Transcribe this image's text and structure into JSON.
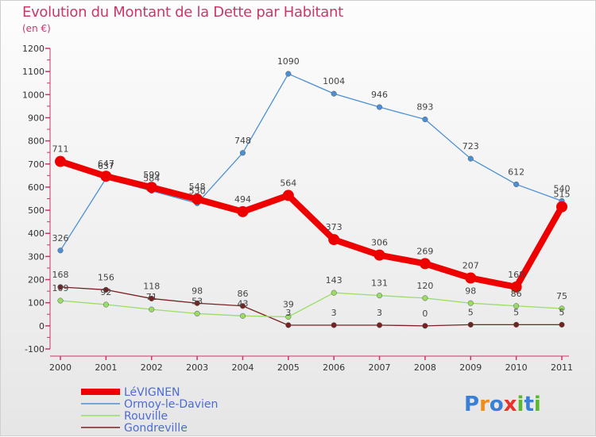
{
  "chart_data": {
    "type": "line",
    "title": "Evolution du Montant de la Dette par Habitant",
    "subtitle": "(en €)",
    "categories": [
      "2000",
      "2001",
      "2002",
      "2003",
      "2004",
      "2005",
      "2006",
      "2007",
      "2008",
      "2009",
      "2010",
      "2011"
    ],
    "ylim": [
      -100,
      1200
    ],
    "yticks": [
      -100,
      0,
      100,
      200,
      300,
      400,
      500,
      600,
      700,
      800,
      900,
      1000,
      1100,
      1200
    ],
    "grid": false,
    "legend_position": "bottom-left",
    "series": [
      {
        "name": "LéVIGNEN",
        "color": "#ee0000",
        "values": [
          711,
          647,
          599,
          548,
          494,
          564,
          373,
          306,
          269,
          207,
          168,
          515
        ]
      },
      {
        "name": "Ormoy-le-Davien",
        "color": "#4d8fd4",
        "values": [
          326,
          637,
          584,
          530,
          748,
          1090,
          1004,
          946,
          893,
          723,
          612,
          540
        ]
      },
      {
        "name": "Rouville",
        "color": "#99dd66",
        "values": [
          109,
          92,
          71,
          53,
          43,
          39,
          143,
          131,
          120,
          98,
          86,
          75
        ]
      },
      {
        "name": "Gondreville",
        "color": "#772222",
        "values": [
          168,
          156,
          118,
          98,
          86,
          3,
          3,
          3,
          0,
          5,
          5,
          5
        ]
      }
    ],
    "brand": "Proxiti"
  }
}
